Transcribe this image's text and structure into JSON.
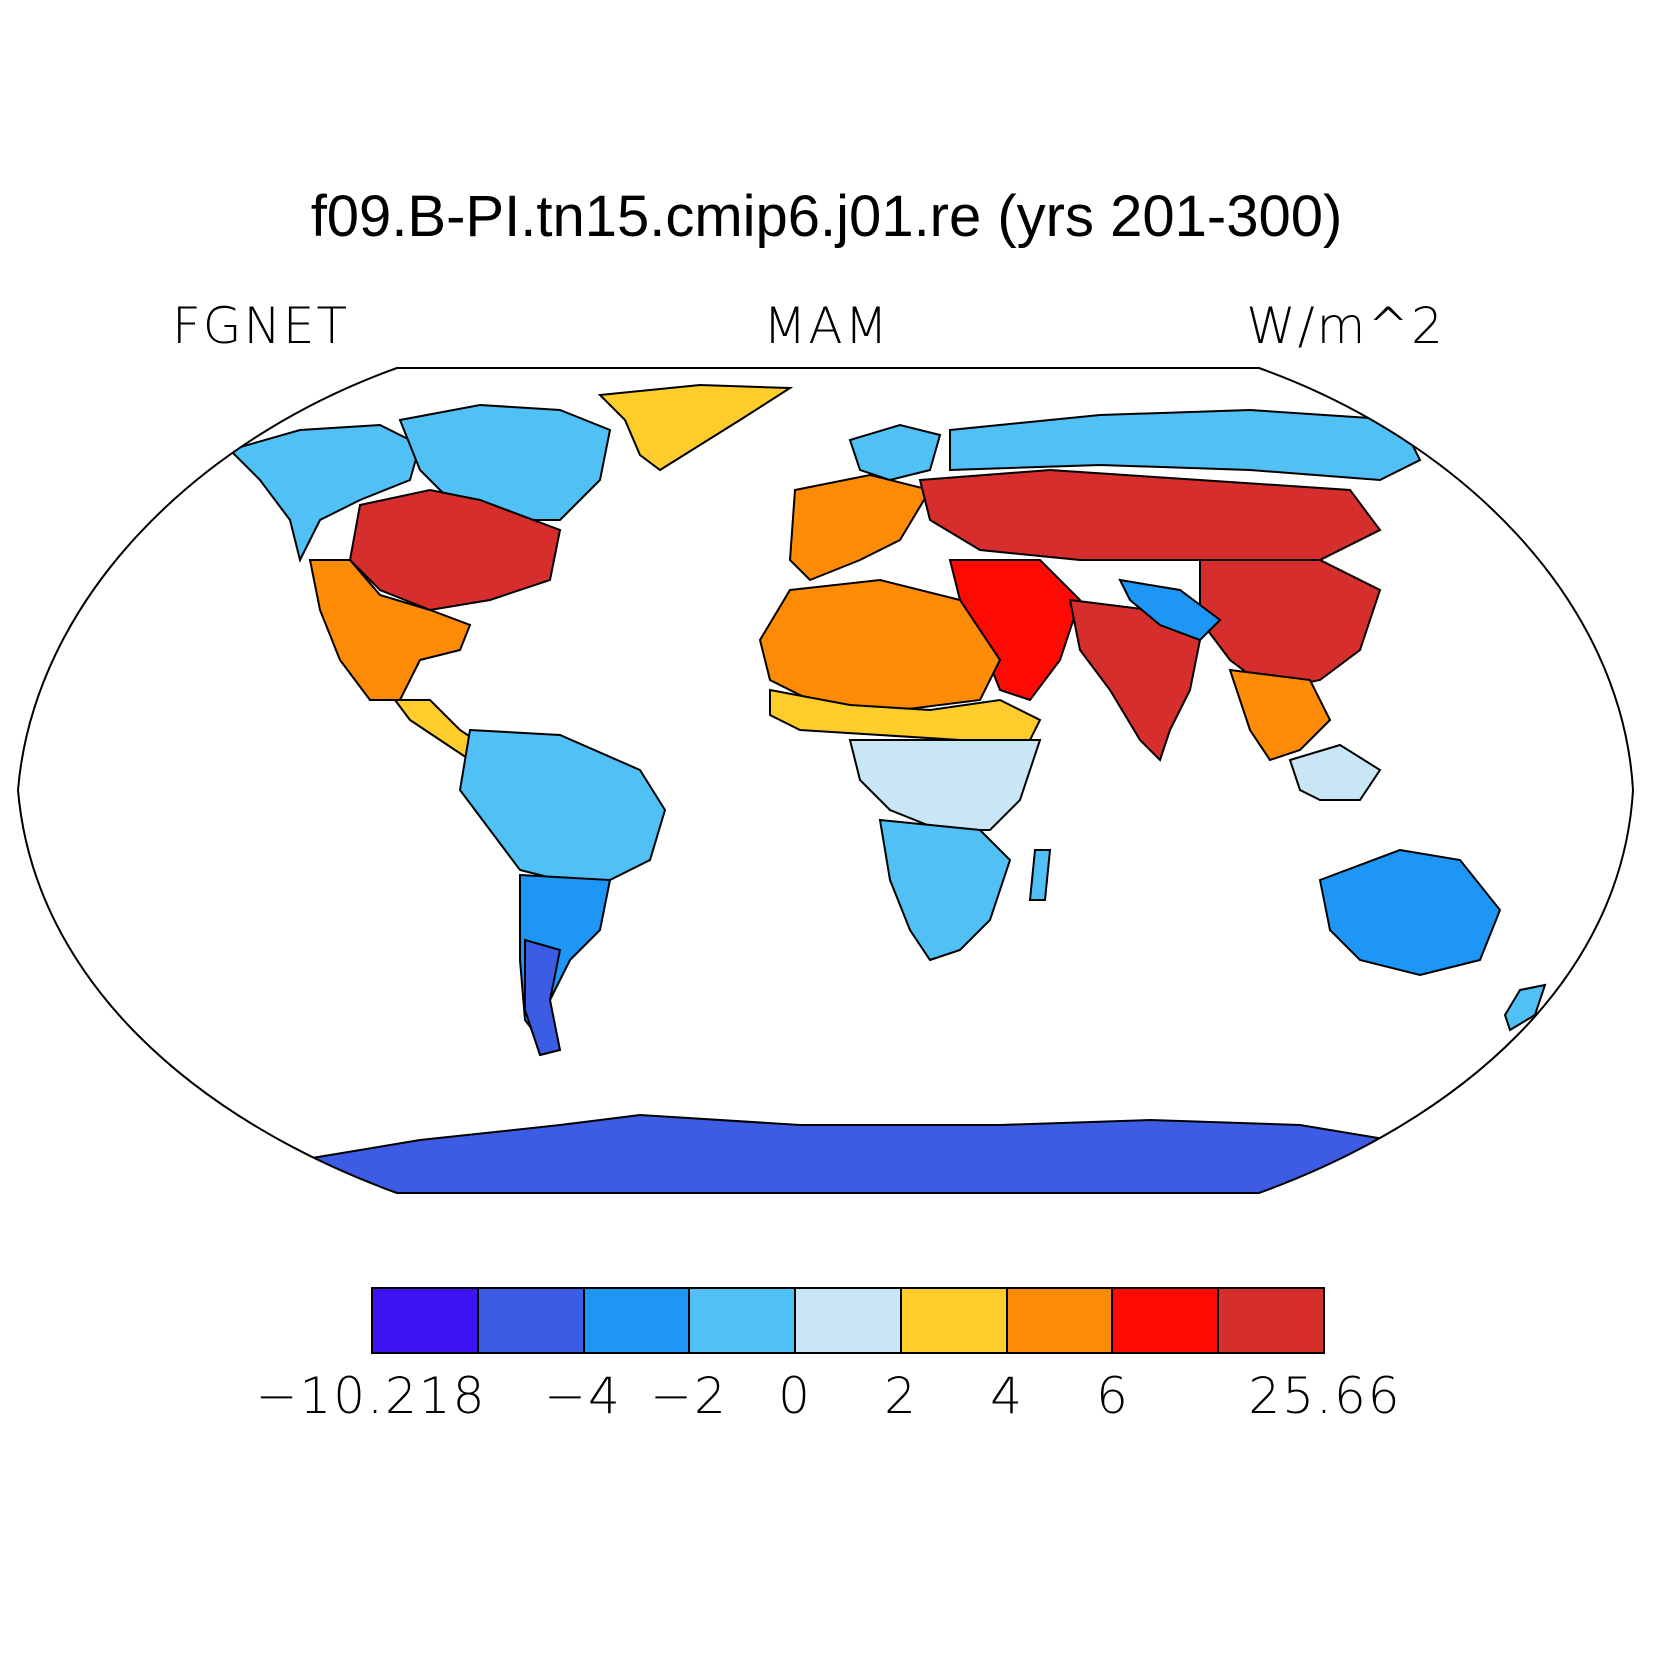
{
  "title": "f09.B-PI.tn15.cmip6.j01.re (yrs 201-300)",
  "left_label": "FGNET",
  "center_label": "MAM",
  "right_label": "W/m^2",
  "colorbar": {
    "colors": [
      "#3e14f5",
      "#3c5de3",
      "#1e96f5",
      "#50c0f5",
      "#c8e6f5",
      "#fecd2c",
      "#fd8b05",
      "#fe0a05",
      "#d52e2c"
    ],
    "labels": [
      {
        "text": "−10.218",
        "boundary": 0
      },
      {
        "text": "−4",
        "boundary": 2
      },
      {
        "text": "−2",
        "boundary": 3
      },
      {
        "text": "0",
        "boundary": 4
      },
      {
        "text": "2",
        "boundary": 5
      },
      {
        "text": "4",
        "boundary": 6
      },
      {
        "text": "6",
        "boundary": 7
      },
      {
        "text": "25.66",
        "boundary": 9
      }
    ]
  },
  "map": {
    "projection": "Robinson",
    "regions": [
      {
        "name": "north-america-west",
        "level": 3
      },
      {
        "name": "north-america-arctic",
        "level": 3
      },
      {
        "name": "greenland",
        "level": 5
      },
      {
        "name": "north-america-central",
        "level": 8
      },
      {
        "name": "north-america-south",
        "level": 6
      },
      {
        "name": "central-america",
        "level": 5
      },
      {
        "name": "south-america-north",
        "level": 3
      },
      {
        "name": "south-america-south",
        "level": 2
      },
      {
        "name": "patagonia",
        "level": 1
      },
      {
        "name": "europe",
        "level": 6
      },
      {
        "name": "scandinavia",
        "level": 3
      },
      {
        "name": "siberia",
        "level": 3
      },
      {
        "name": "central-asia",
        "level": 8
      },
      {
        "name": "middle-east",
        "level": 7
      },
      {
        "name": "india",
        "level": 8
      },
      {
        "name": "china",
        "level": 8
      },
      {
        "name": "tibet",
        "level": 2
      },
      {
        "name": "southeast-asia",
        "level": 6
      },
      {
        "name": "north-africa",
        "level": 6
      },
      {
        "name": "sahel",
        "level": 5
      },
      {
        "name": "central-africa",
        "level": 4
      },
      {
        "name": "southern-africa",
        "level": 3
      },
      {
        "name": "madagascar",
        "level": 3
      },
      {
        "name": "maritime-continent",
        "level": 4
      },
      {
        "name": "australia",
        "level": 2
      },
      {
        "name": "new-zealand",
        "level": 3
      },
      {
        "name": "antarctica",
        "level": 1
      }
    ]
  }
}
